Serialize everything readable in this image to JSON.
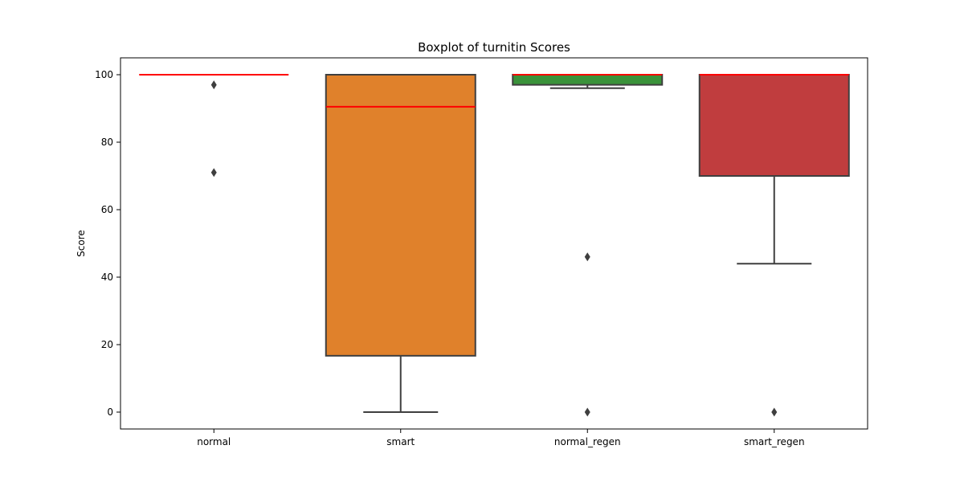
{
  "chart_data": {
    "type": "box",
    "title": "Boxplot of turnitin Scores",
    "xlabel": "",
    "ylabel": "Score",
    "ylim": [
      -5,
      105
    ],
    "yticks": [
      0,
      20,
      40,
      60,
      80,
      100
    ],
    "grid": false,
    "categories": [
      "normal",
      "smart",
      "normal_regen",
      "smart_regen"
    ],
    "boxes": [
      {
        "category": "normal",
        "q1": 100,
        "median": 100,
        "q3": 100,
        "whisker_low": 100,
        "whisker_high": 100,
        "outliers": [
          97,
          71
        ],
        "color": "#3a75b0"
      },
      {
        "category": "smart",
        "q1": 16.7,
        "median": 90.5,
        "q3": 100,
        "whisker_low": 0,
        "whisker_high": 100,
        "outliers": [],
        "color": "#e0812b"
      },
      {
        "category": "normal_regen",
        "q1": 97,
        "median": 100,
        "q3": 100,
        "whisker_low": 96,
        "whisker_high": 100,
        "outliers": [
          46,
          0
        ],
        "color": "#3a923a"
      },
      {
        "category": "smart_regen",
        "q1": 70,
        "median": 100,
        "q3": 100,
        "whisker_low": 44,
        "whisker_high": 100,
        "outliers": [
          0
        ],
        "color": "#c03d3e"
      }
    ],
    "median_color": "#ff0000",
    "edge_color": "#3f3f3f"
  }
}
